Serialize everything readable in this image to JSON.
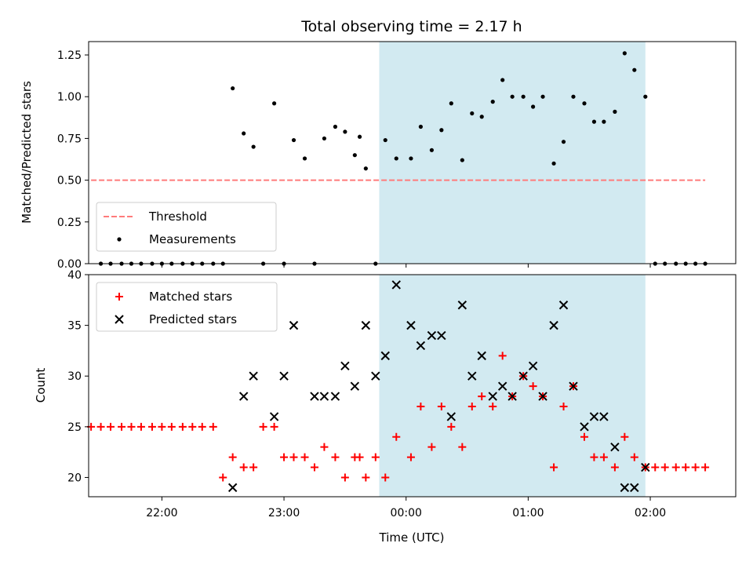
{
  "chart_data": {
    "title": "Total observing time = 2.17 h",
    "xlabel": "Time (UTC)",
    "x_unit": "hours after 00:00 UTC",
    "x_tick_labels": [
      "22:00",
      "23:00",
      "00:00",
      "01:00",
      "02:00"
    ],
    "xlim": [
      -2.6,
      2.7
    ],
    "highlight_span": [
      -0.22,
      1.96
    ],
    "highlight_color": "#add8e6",
    "panels": [
      {
        "name": "ratio",
        "type": "scatter",
        "ylabel": "Matched/Predicted stars",
        "ylim": [
          0.0,
          1.33
        ],
        "y_ticks": [
          0.0,
          0.25,
          0.5,
          0.75,
          1.0,
          1.25
        ],
        "y_tick_labels": [
          "0.00",
          "0.25",
          "0.50",
          "0.75",
          "1.00",
          "1.25"
        ],
        "legend": {
          "position": "lower-left",
          "entries": [
            "Threshold",
            "Measurements"
          ]
        },
        "threshold": {
          "name": "Threshold",
          "value": 0.5,
          "x_range": [
            -2.58,
            2.45
          ],
          "color": "#ff7b7b",
          "style": "dashed"
        },
        "series": [
          {
            "name": "Measurements",
            "color": "#000000",
            "marker": "dot",
            "x": [
              -2.5,
              -2.42,
              -2.33,
              -2.25,
              -2.17,
              -2.08,
              -2.0,
              -1.92,
              -1.83,
              -1.75,
              -1.67,
              -1.58,
              -1.5,
              -1.42,
              -1.33,
              -1.25,
              -1.17,
              -1.08,
              -1.0,
              -0.92,
              -0.83,
              -0.75,
              -0.67,
              -0.58,
              -0.5,
              -0.42,
              -0.38,
              -0.33,
              -0.25,
              -0.17,
              -0.08,
              0.04,
              0.12,
              0.21,
              0.29,
              0.37,
              0.46,
              0.54,
              0.62,
              0.71,
              0.79,
              0.87,
              0.96,
              1.04,
              1.12,
              1.21,
              1.29,
              1.37,
              1.46,
              1.54,
              1.62,
              1.71,
              1.79,
              1.87,
              1.96,
              2.04,
              2.12,
              2.21,
              2.29,
              2.37,
              2.45
            ],
            "y": [
              0,
              0,
              0,
              0,
              0,
              0,
              0,
              0,
              0,
              0,
              0,
              0,
              0,
              1.05,
              0.78,
              0.7,
              0,
              0.96,
              0,
              0.74,
              0.63,
              0,
              0.75,
              0.82,
              0.79,
              0.65,
              0.76,
              0.57,
              0,
              0.74,
              0.63,
              0.63,
              0.82,
              0.68,
              0.8,
              0.96,
              0.62,
              0.9,
              0.88,
              0.97,
              1.1,
              1.0,
              1.0,
              0.94,
              1.0,
              0.6,
              0.73,
              1.0,
              0.96,
              0.85,
              0.85,
              0.91,
              1.26,
              1.16,
              1.0,
              0,
              0,
              0,
              0,
              0,
              0
            ]
          }
        ]
      },
      {
        "name": "counts",
        "type": "scatter",
        "ylabel": "Count",
        "ylim": [
          18.1,
          40
        ],
        "y_ticks": [
          20,
          25,
          30,
          35,
          40
        ],
        "y_tick_labels": [
          "20",
          "25",
          "30",
          "35",
          "40"
        ],
        "legend": {
          "position": "top-left",
          "entries": [
            "Matched stars",
            "Predicted stars"
          ]
        },
        "series": [
          {
            "name": "Matched stars",
            "color": "#ff0000",
            "marker": "plus",
            "x": [
              -2.58,
              -2.5,
              -2.42,
              -2.33,
              -2.25,
              -2.17,
              -2.08,
              -2.0,
              -1.92,
              -1.83,
              -1.75,
              -1.67,
              -1.58,
              -1.5,
              -1.42,
              -1.33,
              -1.25,
              -1.17,
              -1.08,
              -1.0,
              -0.92,
              -0.83,
              -0.75,
              -0.67,
              -0.58,
              -0.5,
              -0.42,
              -0.38,
              -0.33,
              -0.25,
              -0.17,
              -0.08,
              0.04,
              0.12,
              0.21,
              0.29,
              0.37,
              0.46,
              0.54,
              0.62,
              0.71,
              0.79,
              0.87,
              0.96,
              1.04,
              1.12,
              1.21,
              1.29,
              1.37,
              1.46,
              1.54,
              1.62,
              1.71,
              1.79,
              1.87,
              1.96,
              2.04,
              2.12,
              2.21,
              2.29,
              2.37,
              2.45
            ],
            "y": [
              25,
              25,
              25,
              25,
              25,
              25,
              25,
              25,
              25,
              25,
              25,
              25,
              25,
              20,
              22,
              21,
              21,
              25,
              25,
              22,
              22,
              22,
              21,
              23,
              22,
              20,
              22,
              22,
              20,
              22,
              20,
              24,
              22,
              27,
              23,
              27,
              25,
              23,
              27,
              28,
              27,
              32,
              28,
              30,
              29,
              28,
              21,
              27,
              29,
              24,
              22,
              22,
              21,
              24,
              22,
              21,
              21,
              21,
              21,
              21,
              21,
              21
            ]
          },
          {
            "name": "Predicted stars",
            "color": "#000000",
            "marker": "cross",
            "x": [
              -1.42,
              -1.33,
              -1.25,
              -1.08,
              -1.0,
              -0.92,
              -0.75,
              -0.67,
              -0.58,
              -0.5,
              -0.42,
              -0.33,
              -0.25,
              -0.17,
              -0.08,
              0.04,
              0.12,
              0.21,
              0.29,
              0.37,
              0.46,
              0.54,
              0.62,
              0.71,
              0.79,
              0.87,
              0.96,
              1.04,
              1.12,
              1.21,
              1.29,
              1.37,
              1.46,
              1.54,
              1.62,
              1.71,
              1.79,
              1.87,
              1.96
            ],
            "y": [
              19,
              28,
              30,
              26,
              30,
              35,
              28,
              28,
              28,
              31,
              29,
              35,
              30,
              32,
              39,
              35,
              33,
              34,
              34,
              26,
              37,
              30,
              32,
              28,
              29,
              28,
              30,
              31,
              28,
              35,
              37,
              29,
              25,
              26,
              26,
              23,
              19,
              19,
              21
            ]
          }
        ]
      }
    ]
  }
}
